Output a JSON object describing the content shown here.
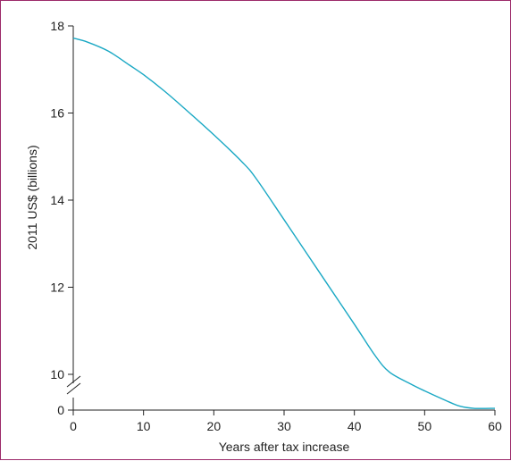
{
  "chart_data": {
    "type": "line",
    "title": "",
    "xlabel": "Years after tax increase",
    "ylabel": "2011 US$ (billions)",
    "xlim": [
      0,
      60
    ],
    "ylim": [
      10,
      18
    ],
    "x_ticks": [
      "0",
      "10",
      "20",
      "30",
      "40",
      "50",
      "60"
    ],
    "y_ticks": [
      "10",
      "12",
      "14",
      "16",
      "18"
    ],
    "y_break_tick": "0",
    "grid": false,
    "legend": "none",
    "line_color": "#1aa8c4",
    "series": [
      {
        "x": [
          0,
          2,
          5,
          8,
          10,
          13,
          16,
          20,
          24,
          26,
          30,
          35,
          40,
          43,
          45,
          48,
          50,
          53,
          55,
          57,
          60
        ],
        "y": [
          17.72,
          17.63,
          17.42,
          17.1,
          16.88,
          16.5,
          16.08,
          15.5,
          14.88,
          14.5,
          13.55,
          12.35,
          11.15,
          10.42,
          10.05,
          9.78,
          9.62,
          9.4,
          9.27,
          9.22,
          9.22
        ]
      }
    ]
  }
}
